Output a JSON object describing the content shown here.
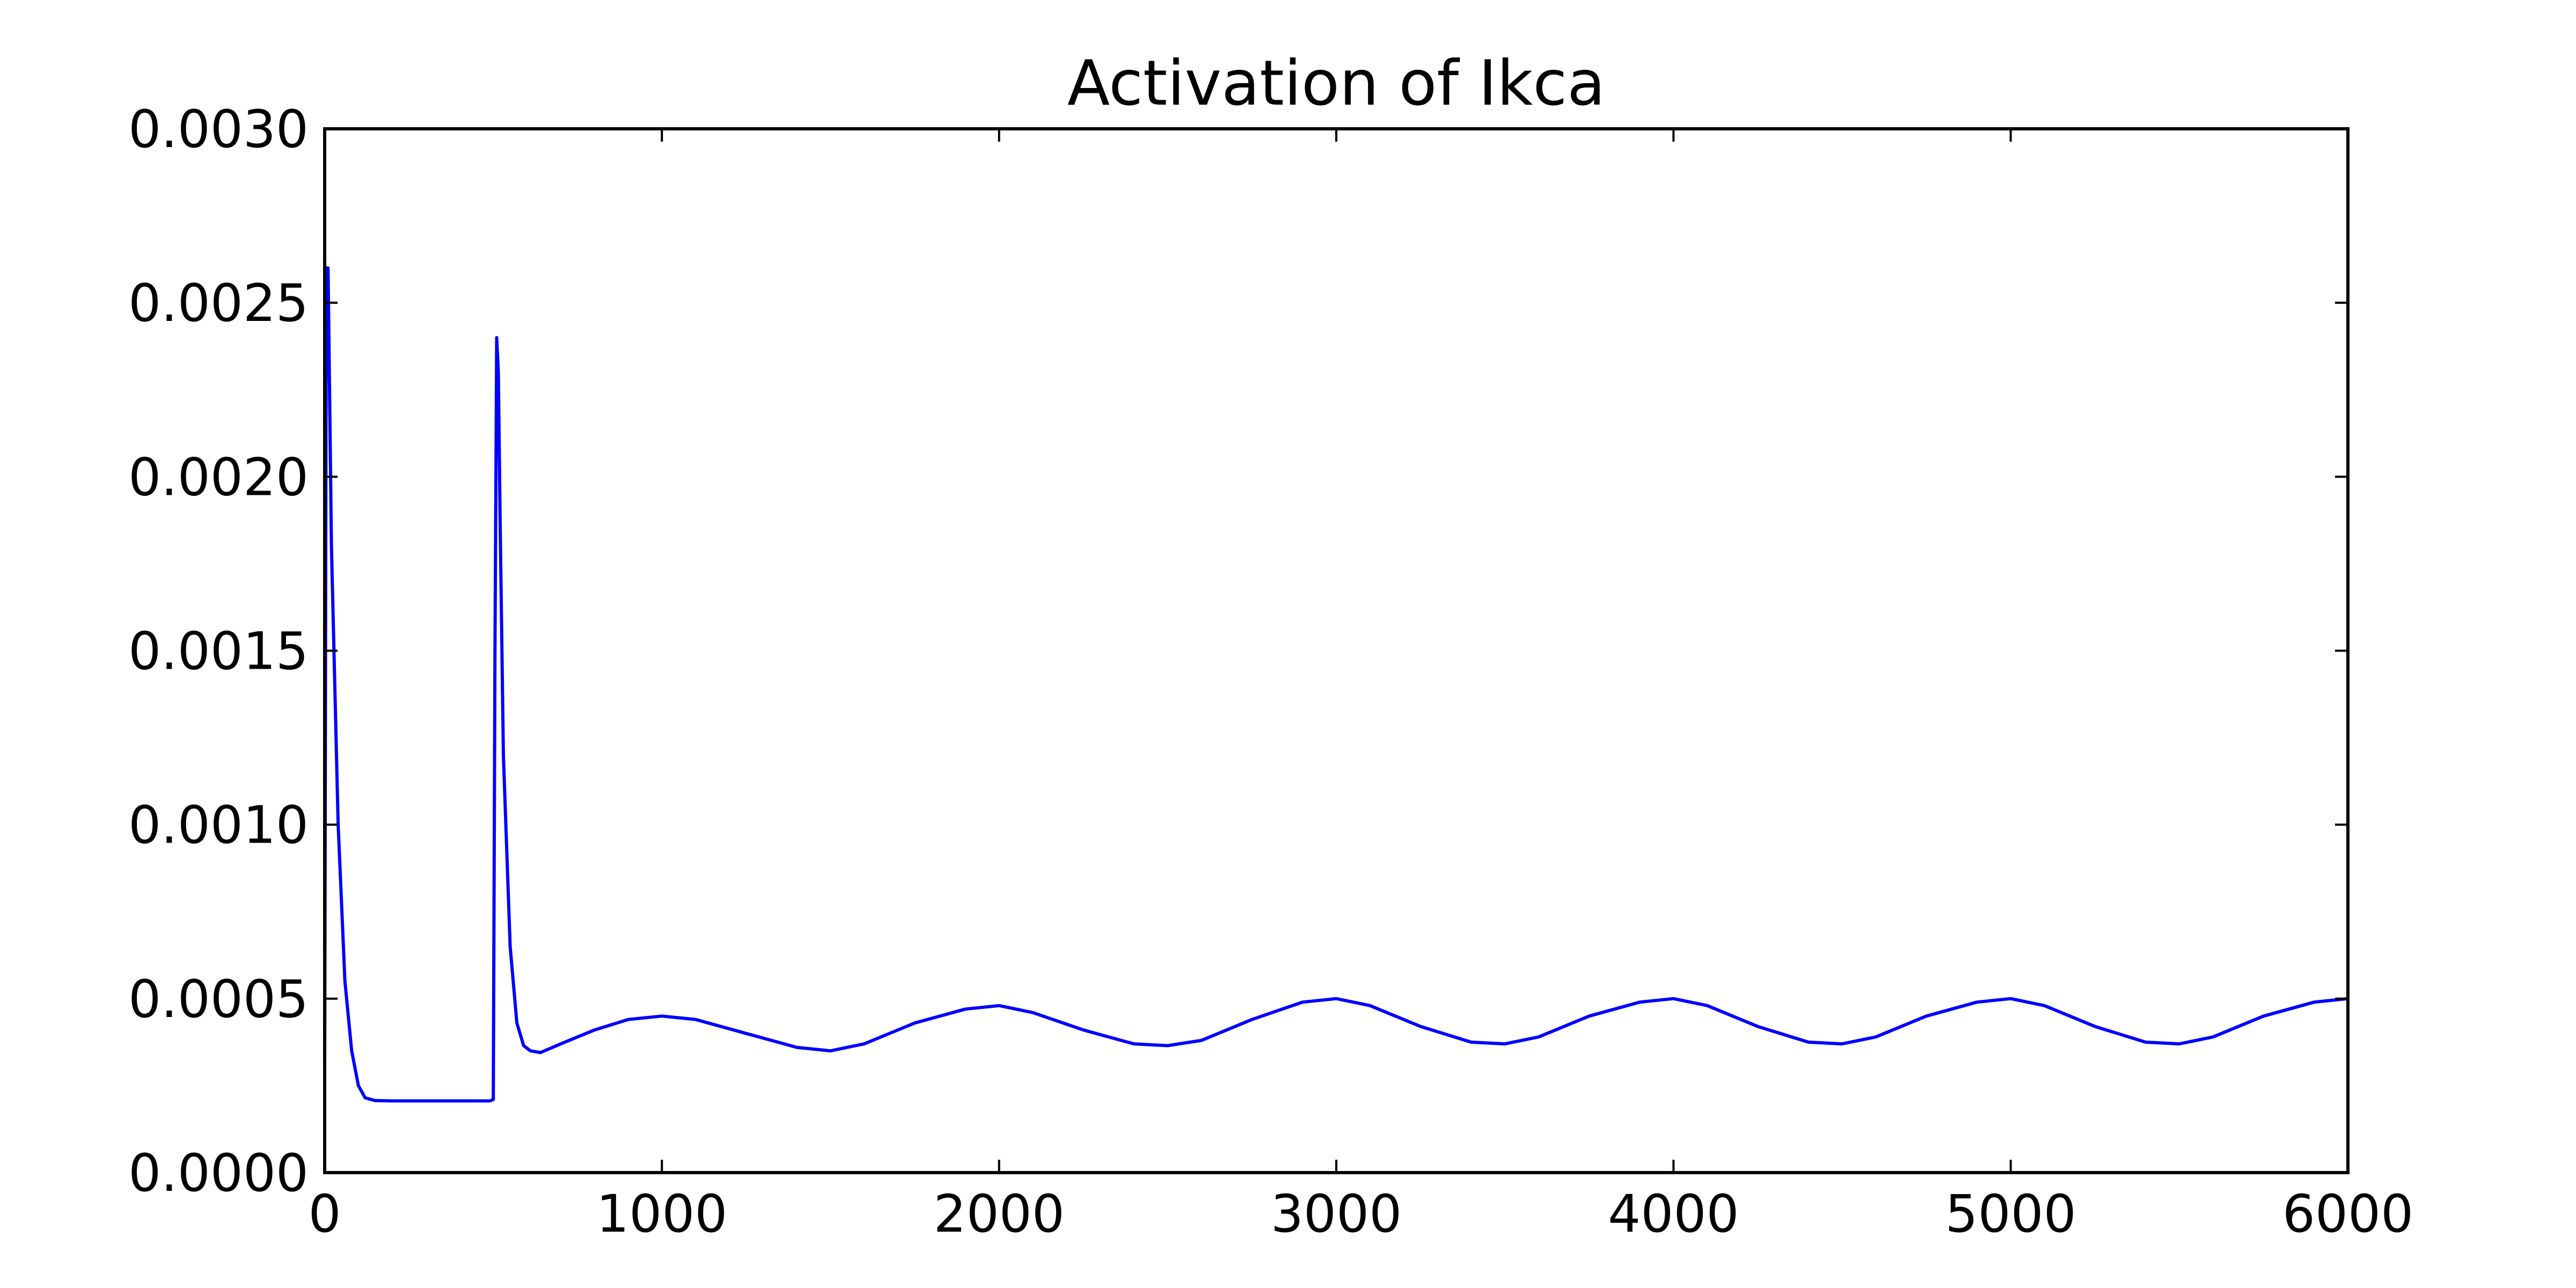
{
  "chart_data": {
    "type": "line",
    "title": "Activation of Ikca",
    "xlabel": "",
    "ylabel": "",
    "xlim": [
      0,
      6000
    ],
    "ylim": [
      0,
      0.003
    ],
    "x_ticks": [
      "0",
      "1000",
      "2000",
      "3000",
      "4000",
      "5000",
      "6000"
    ],
    "y_ticks": [
      "0.0000",
      "0.0005",
      "0.0010",
      "0.0015",
      "0.0020",
      "0.0025",
      "0.0030"
    ],
    "grid": false,
    "series": [
      {
        "color": "#0000ff",
        "x": [
          0,
          5,
          10,
          20,
          40,
          60,
          80,
          100,
          120,
          150,
          200,
          300,
          400,
          490,
          500,
          505,
          510,
          515,
          520,
          530,
          550,
          570,
          590,
          610,
          640,
          700,
          800,
          900,
          1000,
          1100,
          1250,
          1400,
          1500,
          1600,
          1750,
          1900,
          2000,
          2100,
          2250,
          2400,
          2500,
          2600,
          2750,
          2900,
          3000,
          3100,
          3250,
          3400,
          3500,
          3600,
          3750,
          3900,
          4000,
          4100,
          4250,
          4400,
          4500,
          4600,
          4750,
          4900,
          5000,
          5100,
          5250,
          5400,
          5500,
          5600,
          5750,
          5900,
          6000
        ],
        "y": [
          0.0003,
          0.0026,
          0.0026,
          0.0018,
          0.001,
          0.00055,
          0.00035,
          0.00025,
          0.000215,
          0.000207,
          0.000206,
          0.000206,
          0.000206,
          0.000206,
          0.00021,
          0.0015,
          0.0024,
          0.0023,
          0.0019,
          0.0012,
          0.00065,
          0.00043,
          0.000365,
          0.00035,
          0.000345,
          0.00037,
          0.00041,
          0.00044,
          0.00045,
          0.00044,
          0.0004,
          0.00036,
          0.00035,
          0.00037,
          0.00043,
          0.00047,
          0.00048,
          0.00046,
          0.00041,
          0.00037,
          0.000365,
          0.00038,
          0.00044,
          0.00049,
          0.0005,
          0.00048,
          0.00042,
          0.000375,
          0.00037,
          0.00039,
          0.00045,
          0.00049,
          0.0005,
          0.00048,
          0.00042,
          0.000375,
          0.00037,
          0.00039,
          0.00045,
          0.00049,
          0.0005,
          0.00048,
          0.00042,
          0.000375,
          0.00037,
          0.00039,
          0.00045,
          0.00049,
          0.0005
        ]
      }
    ]
  }
}
